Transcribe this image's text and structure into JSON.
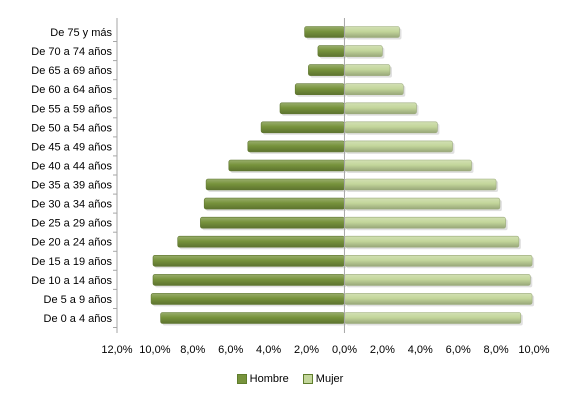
{
  "chart_data": {
    "type": "bar",
    "orientation": "horizontal",
    "layout": "population-pyramid",
    "categories": [
      "De 0 a 4 años",
      "De 5 a 9 años",
      "De 10 a 14 años",
      "De 15 a 19 años",
      "De 20 a 24 años",
      "De 25 a 29 años",
      "De 30 a 34 años",
      "De 35 a 39 años",
      "De 40 a 44 años",
      "De 45 a 49 años",
      "De 50 a 54 años",
      "De 55 a 59 años",
      "De 60 a 64 años",
      "De 65 a 69 años",
      "De 70 a 74 años",
      "De 75 y más"
    ],
    "series": [
      {
        "name": "Hombre",
        "side": "left",
        "color": "#77933c",
        "values": [
          9.7,
          10.2,
          10.1,
          10.1,
          8.8,
          7.6,
          7.4,
          7.3,
          6.1,
          5.1,
          4.4,
          3.4,
          2.6,
          1.9,
          1.4,
          2.1
        ]
      },
      {
        "name": "Mujer",
        "side": "right",
        "color": "#c3d69b",
        "values": [
          9.3,
          9.9,
          9.8,
          9.9,
          9.2,
          8.5,
          8.2,
          8.0,
          6.7,
          5.7,
          4.9,
          3.8,
          3.1,
          2.4,
          2.0,
          2.9
        ]
      }
    ],
    "xlim": [
      -12,
      10
    ],
    "xticks": [
      -12,
      -10,
      -8,
      -6,
      -4,
      -2,
      0,
      2,
      4,
      6,
      8,
      10
    ],
    "xtick_labels": [
      "12,0%",
      "10,0%",
      "8,0%",
      "6,0%",
      "4,0%",
      "2,0%",
      "0,0%",
      "2,0%",
      "4,0%",
      "6,0%",
      "8,0%",
      "10,0%"
    ],
    "title": "",
    "xlabel": "",
    "ylabel": "",
    "grid": false,
    "legend": "bottom",
    "axis_color": "#a6a6a6"
  }
}
